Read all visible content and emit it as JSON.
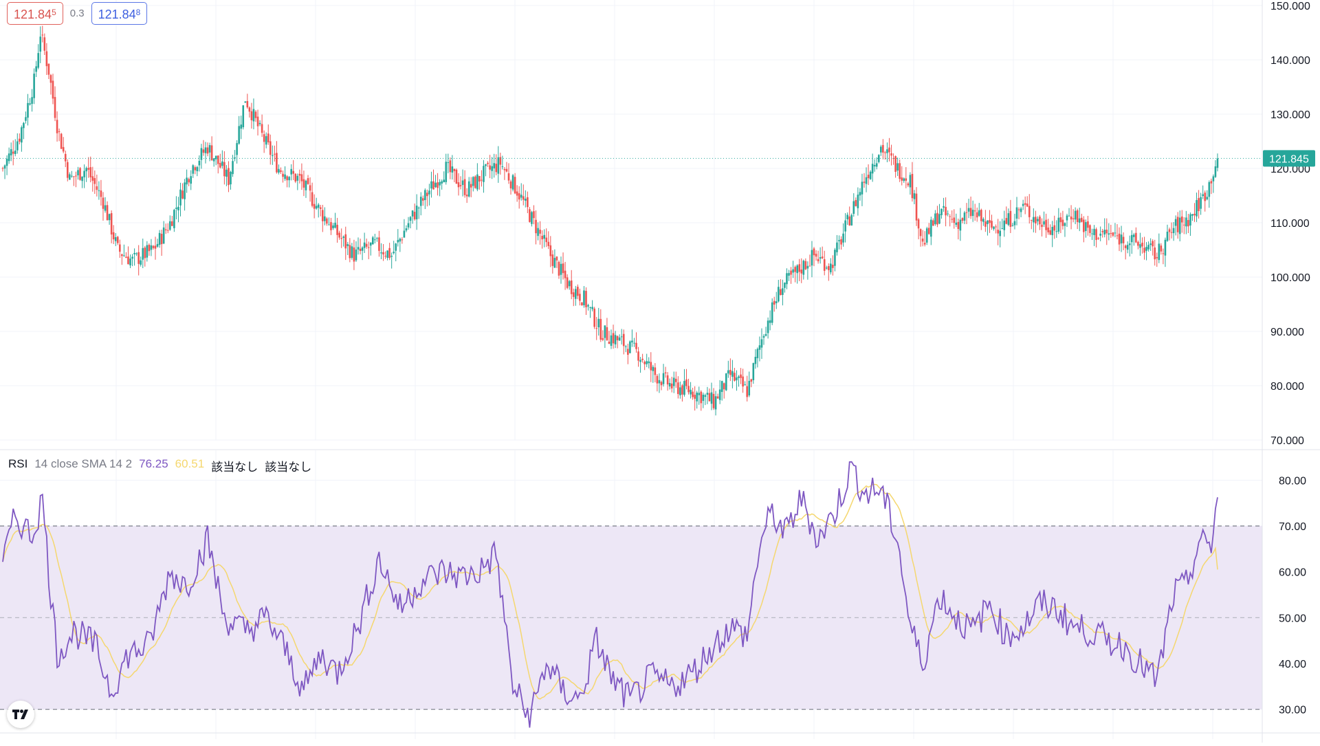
{
  "header": {
    "bid_main": "121.84",
    "bid_pip": "5",
    "spread": "0.3",
    "ask_main": "121.84",
    "ask_pip": "8"
  },
  "price_axis": {
    "ticks": [
      "150.000",
      "140.000",
      "130.000",
      "120.000",
      "110.000",
      "100.000",
      "90.000",
      "80.000",
      "70.000"
    ],
    "last_price_label": "121.845"
  },
  "rsi_axis": {
    "ticks": [
      "80.00",
      "70.00",
      "60.00",
      "50.00",
      "40.00",
      "30.00"
    ]
  },
  "rsi_legend": {
    "name": "RSI",
    "params": "14 close SMA 14 2",
    "rsi_value": "76.25",
    "sma_value": "60.51",
    "na1": "該当なし",
    "na2": "該当なし"
  },
  "colors": {
    "up": "#26a69a",
    "down": "#ef5350",
    "rsi_line": "#7e57c2",
    "rsi_sma": "#f5d76e",
    "rsi_band": "#ede7f6",
    "last_price": "#26a69a"
  },
  "chart_data": [
    {
      "type": "candlestick",
      "ylim": [
        70,
        150
      ],
      "grid": true,
      "last_price": 121.845,
      "close_path_anchors": [
        [
          0,
          120
        ],
        [
          8,
          126
        ],
        [
          15,
          136
        ],
        [
          18,
          145
        ],
        [
          22,
          138
        ],
        [
          26,
          128
        ],
        [
          32,
          118
        ],
        [
          40,
          120
        ],
        [
          48,
          114
        ],
        [
          55,
          105
        ],
        [
          62,
          103
        ],
        [
          72,
          105
        ],
        [
          80,
          110
        ],
        [
          90,
          120
        ],
        [
          98,
          124
        ],
        [
          108,
          118
        ],
        [
          116,
          133
        ],
        [
          124,
          126
        ],
        [
          132,
          120
        ],
        [
          142,
          118
        ],
        [
          152,
          112
        ],
        [
          160,
          108
        ],
        [
          168,
          104
        ],
        [
          178,
          106
        ],
        [
          186,
          104
        ],
        [
          194,
          110
        ],
        [
          204,
          116
        ],
        [
          212,
          120
        ],
        [
          222,
          116
        ],
        [
          230,
          119
        ],
        [
          238,
          121
        ],
        [
          246,
          116
        ],
        [
          254,
          110
        ],
        [
          262,
          104
        ],
        [
          270,
          99
        ],
        [
          278,
          96
        ],
        [
          286,
          90
        ],
        [
          296,
          88
        ],
        [
          304,
          86
        ],
        [
          312,
          82
        ],
        [
          320,
          80
        ],
        [
          330,
          79
        ],
        [
          340,
          77
        ],
        [
          348,
          82
        ],
        [
          356,
          79
        ],
        [
          364,
          90
        ],
        [
          372,
          98
        ],
        [
          380,
          101
        ],
        [
          388,
          104
        ],
        [
          396,
          102
        ],
        [
          404,
          110
        ],
        [
          412,
          118
        ],
        [
          420,
          124
        ],
        [
          428,
          120
        ],
        [
          434,
          118
        ],
        [
          440,
          106
        ],
        [
          448,
          112
        ],
        [
          456,
          110
        ],
        [
          464,
          112
        ],
        [
          472,
          109
        ],
        [
          480,
          110
        ],
        [
          488,
          113
        ],
        [
          496,
          110
        ],
        [
          504,
          109
        ],
        [
          512,
          112
        ],
        [
          520,
          108
        ],
        [
          528,
          108
        ],
        [
          536,
          107
        ],
        [
          544,
          106
        ],
        [
          552,
          104
        ],
        [
          560,
          109
        ],
        [
          568,
          111
        ],
        [
          576,
          116
        ],
        [
          581,
          122
        ]
      ]
    },
    {
      "type": "line",
      "title": "RSI 14 close SMA 14 2",
      "ylim": [
        25,
        85
      ],
      "bands": {
        "upper": 70,
        "middle": 50,
        "lower": 30
      },
      "rsi_path_anchors": [
        [
          0,
          62
        ],
        [
          6,
          72
        ],
        [
          14,
          68
        ],
        [
          19,
          76
        ],
        [
          22,
          60
        ],
        [
          26,
          42
        ],
        [
          34,
          47
        ],
        [
          44,
          44
        ],
        [
          52,
          34
        ],
        [
          60,
          42
        ],
        [
          70,
          44
        ],
        [
          80,
          60
        ],
        [
          88,
          57
        ],
        [
          98,
          67
        ],
        [
          106,
          50
        ],
        [
          116,
          47
        ],
        [
          126,
          50
        ],
        [
          134,
          44
        ],
        [
          144,
          34
        ],
        [
          152,
          42
        ],
        [
          160,
          38
        ],
        [
          170,
          48
        ],
        [
          180,
          63
        ],
        [
          190,
          52
        ],
        [
          200,
          58
        ],
        [
          210,
          60
        ],
        [
          220,
          59
        ],
        [
          228,
          60
        ],
        [
          236,
          64
        ],
        [
          244,
          35
        ],
        [
          252,
          28
        ],
        [
          260,
          40
        ],
        [
          268,
          34
        ],
        [
          276,
          32
        ],
        [
          284,
          45
        ],
        [
          292,
          36
        ],
        [
          300,
          32
        ],
        [
          310,
          37
        ],
        [
          320,
          35
        ],
        [
          330,
          38
        ],
        [
          340,
          44
        ],
        [
          348,
          48
        ],
        [
          356,
          46
        ],
        [
          362,
          66
        ],
        [
          368,
          73
        ],
        [
          374,
          68
        ],
        [
          382,
          76
        ],
        [
          390,
          67
        ],
        [
          398,
          73
        ],
        [
          406,
          83
        ],
        [
          412,
          77
        ],
        [
          420,
          78
        ],
        [
          428,
          67
        ],
        [
          434,
          48
        ],
        [
          440,
          40
        ],
        [
          448,
          55
        ],
        [
          456,
          50
        ],
        [
          464,
          47
        ],
        [
          472,
          53
        ],
        [
          480,
          46
        ],
        [
          488,
          48
        ],
        [
          496,
          53
        ],
        [
          504,
          52
        ],
        [
          512,
          48
        ],
        [
          520,
          47
        ],
        [
          528,
          45
        ],
        [
          536,
          44
        ],
        [
          544,
          40
        ],
        [
          552,
          36
        ],
        [
          560,
          55
        ],
        [
          566,
          57
        ],
        [
          572,
          66
        ],
        [
          578,
          66
        ],
        [
          581,
          76
        ]
      ],
      "rsi_last": 76.25,
      "sma_last": 60.51
    }
  ]
}
